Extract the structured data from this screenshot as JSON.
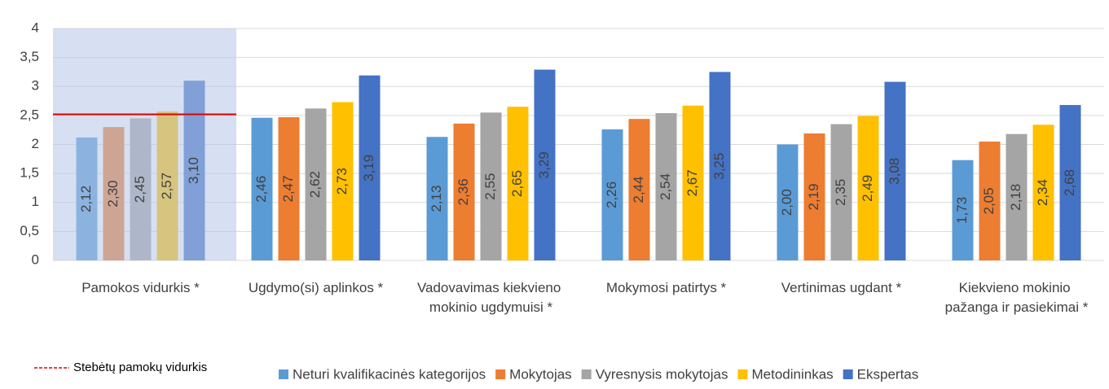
{
  "chart_data": {
    "type": "bar",
    "categories": [
      "Pamokos vidurkis *",
      "Ugdymo(si) aplinkos *",
      "Vadovavimas kiekvieno mokinio ugdymuisi *",
      "Mokymosi patirtys *",
      "Vertinimas ugdant *",
      "Kiekvieno mokinio pažanga ir pasiekimai *"
    ],
    "series": [
      {
        "name": "Neturi kvalifikacinės kategorijos",
        "color": "#5b9bd5",
        "values": [
          2.12,
          2.46,
          2.13,
          2.26,
          2.0,
          1.73
        ],
        "value_labels": [
          "2,12",
          "2,46",
          "2,13",
          "2,26",
          "2,00",
          "1,73"
        ]
      },
      {
        "name": "Mokytojas",
        "color": "#ed7d31",
        "values": [
          2.3,
          2.47,
          2.36,
          2.44,
          2.19,
          2.05
        ],
        "value_labels": [
          "2,30",
          "2,47",
          "2,36",
          "2,44",
          "2,19",
          "2,05"
        ]
      },
      {
        "name": "Vyresnysis mokytojas",
        "color": "#a5a5a5",
        "values": [
          2.45,
          2.62,
          2.55,
          2.54,
          2.35,
          2.18
        ],
        "value_labels": [
          "2,45",
          "2,62",
          "2,55",
          "2,54",
          "2,35",
          "2,18"
        ]
      },
      {
        "name": "Metodininkas",
        "color": "#ffc000",
        "values": [
          2.57,
          2.73,
          2.65,
          2.67,
          2.49,
          2.34
        ],
        "value_labels": [
          "2,57",
          "2,73",
          "2,65",
          "2,67",
          "2,49",
          "2,34"
        ]
      },
      {
        "name": "Ekspertas",
        "color": "#4472c4",
        "values": [
          3.1,
          3.19,
          3.29,
          3.25,
          3.08,
          2.68
        ],
        "value_labels": [
          "3,10",
          "3,19",
          "3,29",
          "3,25",
          "3,08",
          "2,68"
        ]
      }
    ],
    "reference_line": {
      "label": "Stebėtų pamokų vidurkis",
      "value": 2.52,
      "color": "#e00000"
    },
    "ylim": [
      0,
      4
    ],
    "yticks": [
      0,
      {
        "value": 0.5,
        "label": "0,5"
      },
      1,
      {
        "value": 1.5,
        "label": "1,5"
      },
      2,
      {
        "value": 2.5,
        "label": "2,5"
      },
      3,
      {
        "value": 3.5,
        "label": "3,5"
      },
      4
    ],
    "grid": true,
    "legend": "bottom"
  }
}
